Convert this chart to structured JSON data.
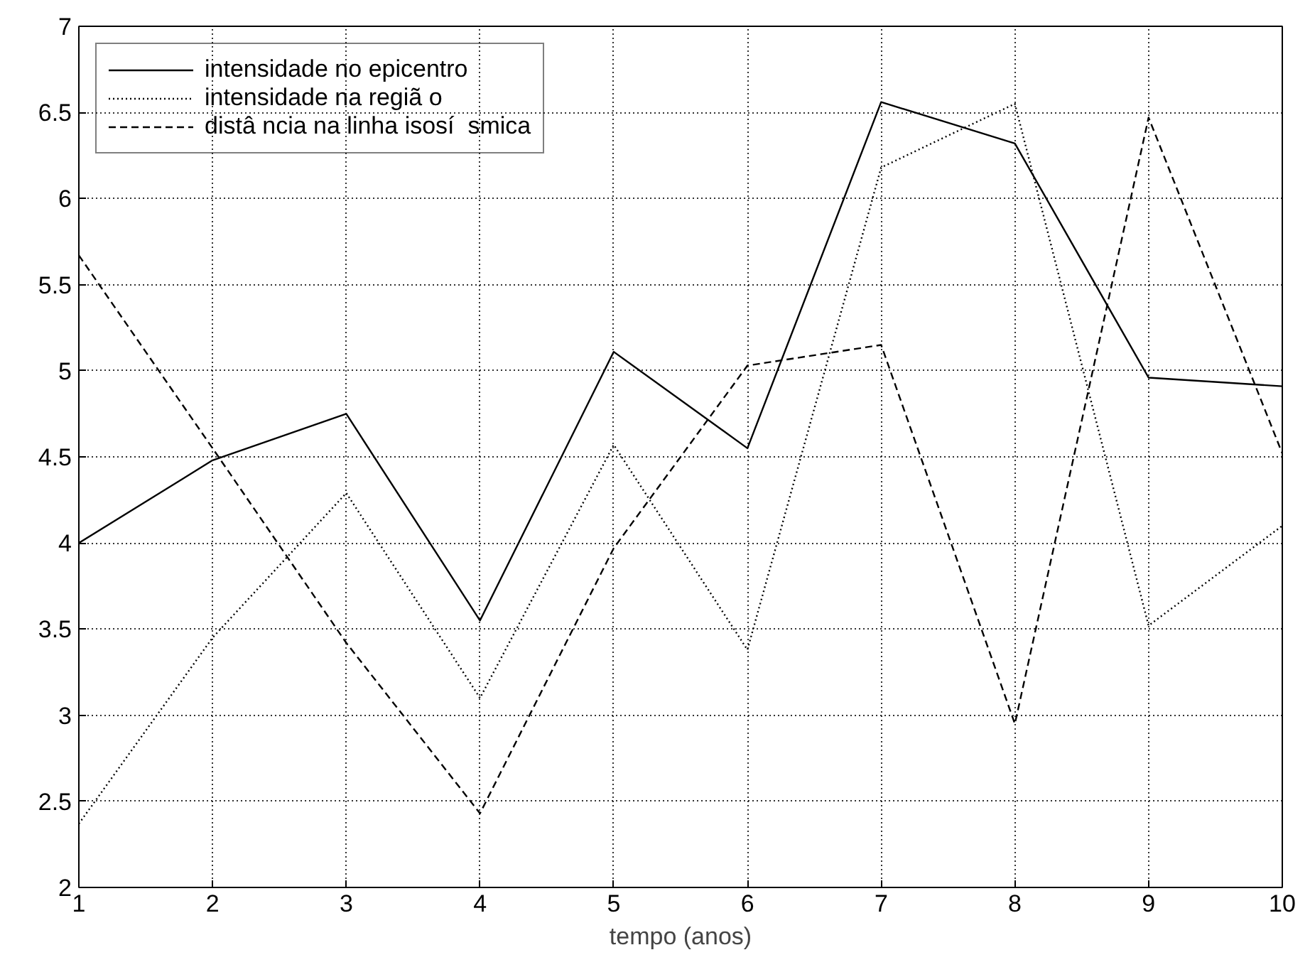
{
  "chart_data": {
    "type": "line",
    "xlabel": "tempo (anos)",
    "x": [
      1,
      2,
      3,
      4,
      5,
      6,
      7,
      8,
      9,
      10
    ],
    "xlim": [
      1,
      10
    ],
    "xticks": [
      1,
      2,
      3,
      4,
      5,
      6,
      7,
      8,
      9,
      10
    ],
    "ylim": [
      2,
      7
    ],
    "yticks": [
      2,
      2.5,
      3,
      3.5,
      4,
      4.5,
      5,
      5.5,
      6,
      6.5,
      7
    ],
    "grid": true,
    "legend": "top left",
    "marker": "none",
    "series": [
      {
        "name": "intensidade no epicentro",
        "color": "#000000",
        "line_style": "solid",
        "values": [
          4.0,
          4.48,
          4.75,
          3.55,
          5.11,
          4.55,
          6.56,
          6.32,
          4.96,
          4.91
        ]
      },
      {
        "name": "intensidade na regiã o",
        "color": "#000000",
        "line_style": "dotted",
        "values": [
          2.37,
          3.45,
          4.29,
          3.1,
          4.57,
          3.38,
          6.18,
          6.55,
          3.52,
          4.1
        ]
      },
      {
        "name": "distâ ncia na linha isosí  smica",
        "color": "#000000",
        "line_style": "dashed",
        "values": [
          5.67,
          4.55,
          3.42,
          2.43,
          3.97,
          5.03,
          5.15,
          2.95,
          6.47,
          4.52
        ]
      }
    ]
  }
}
